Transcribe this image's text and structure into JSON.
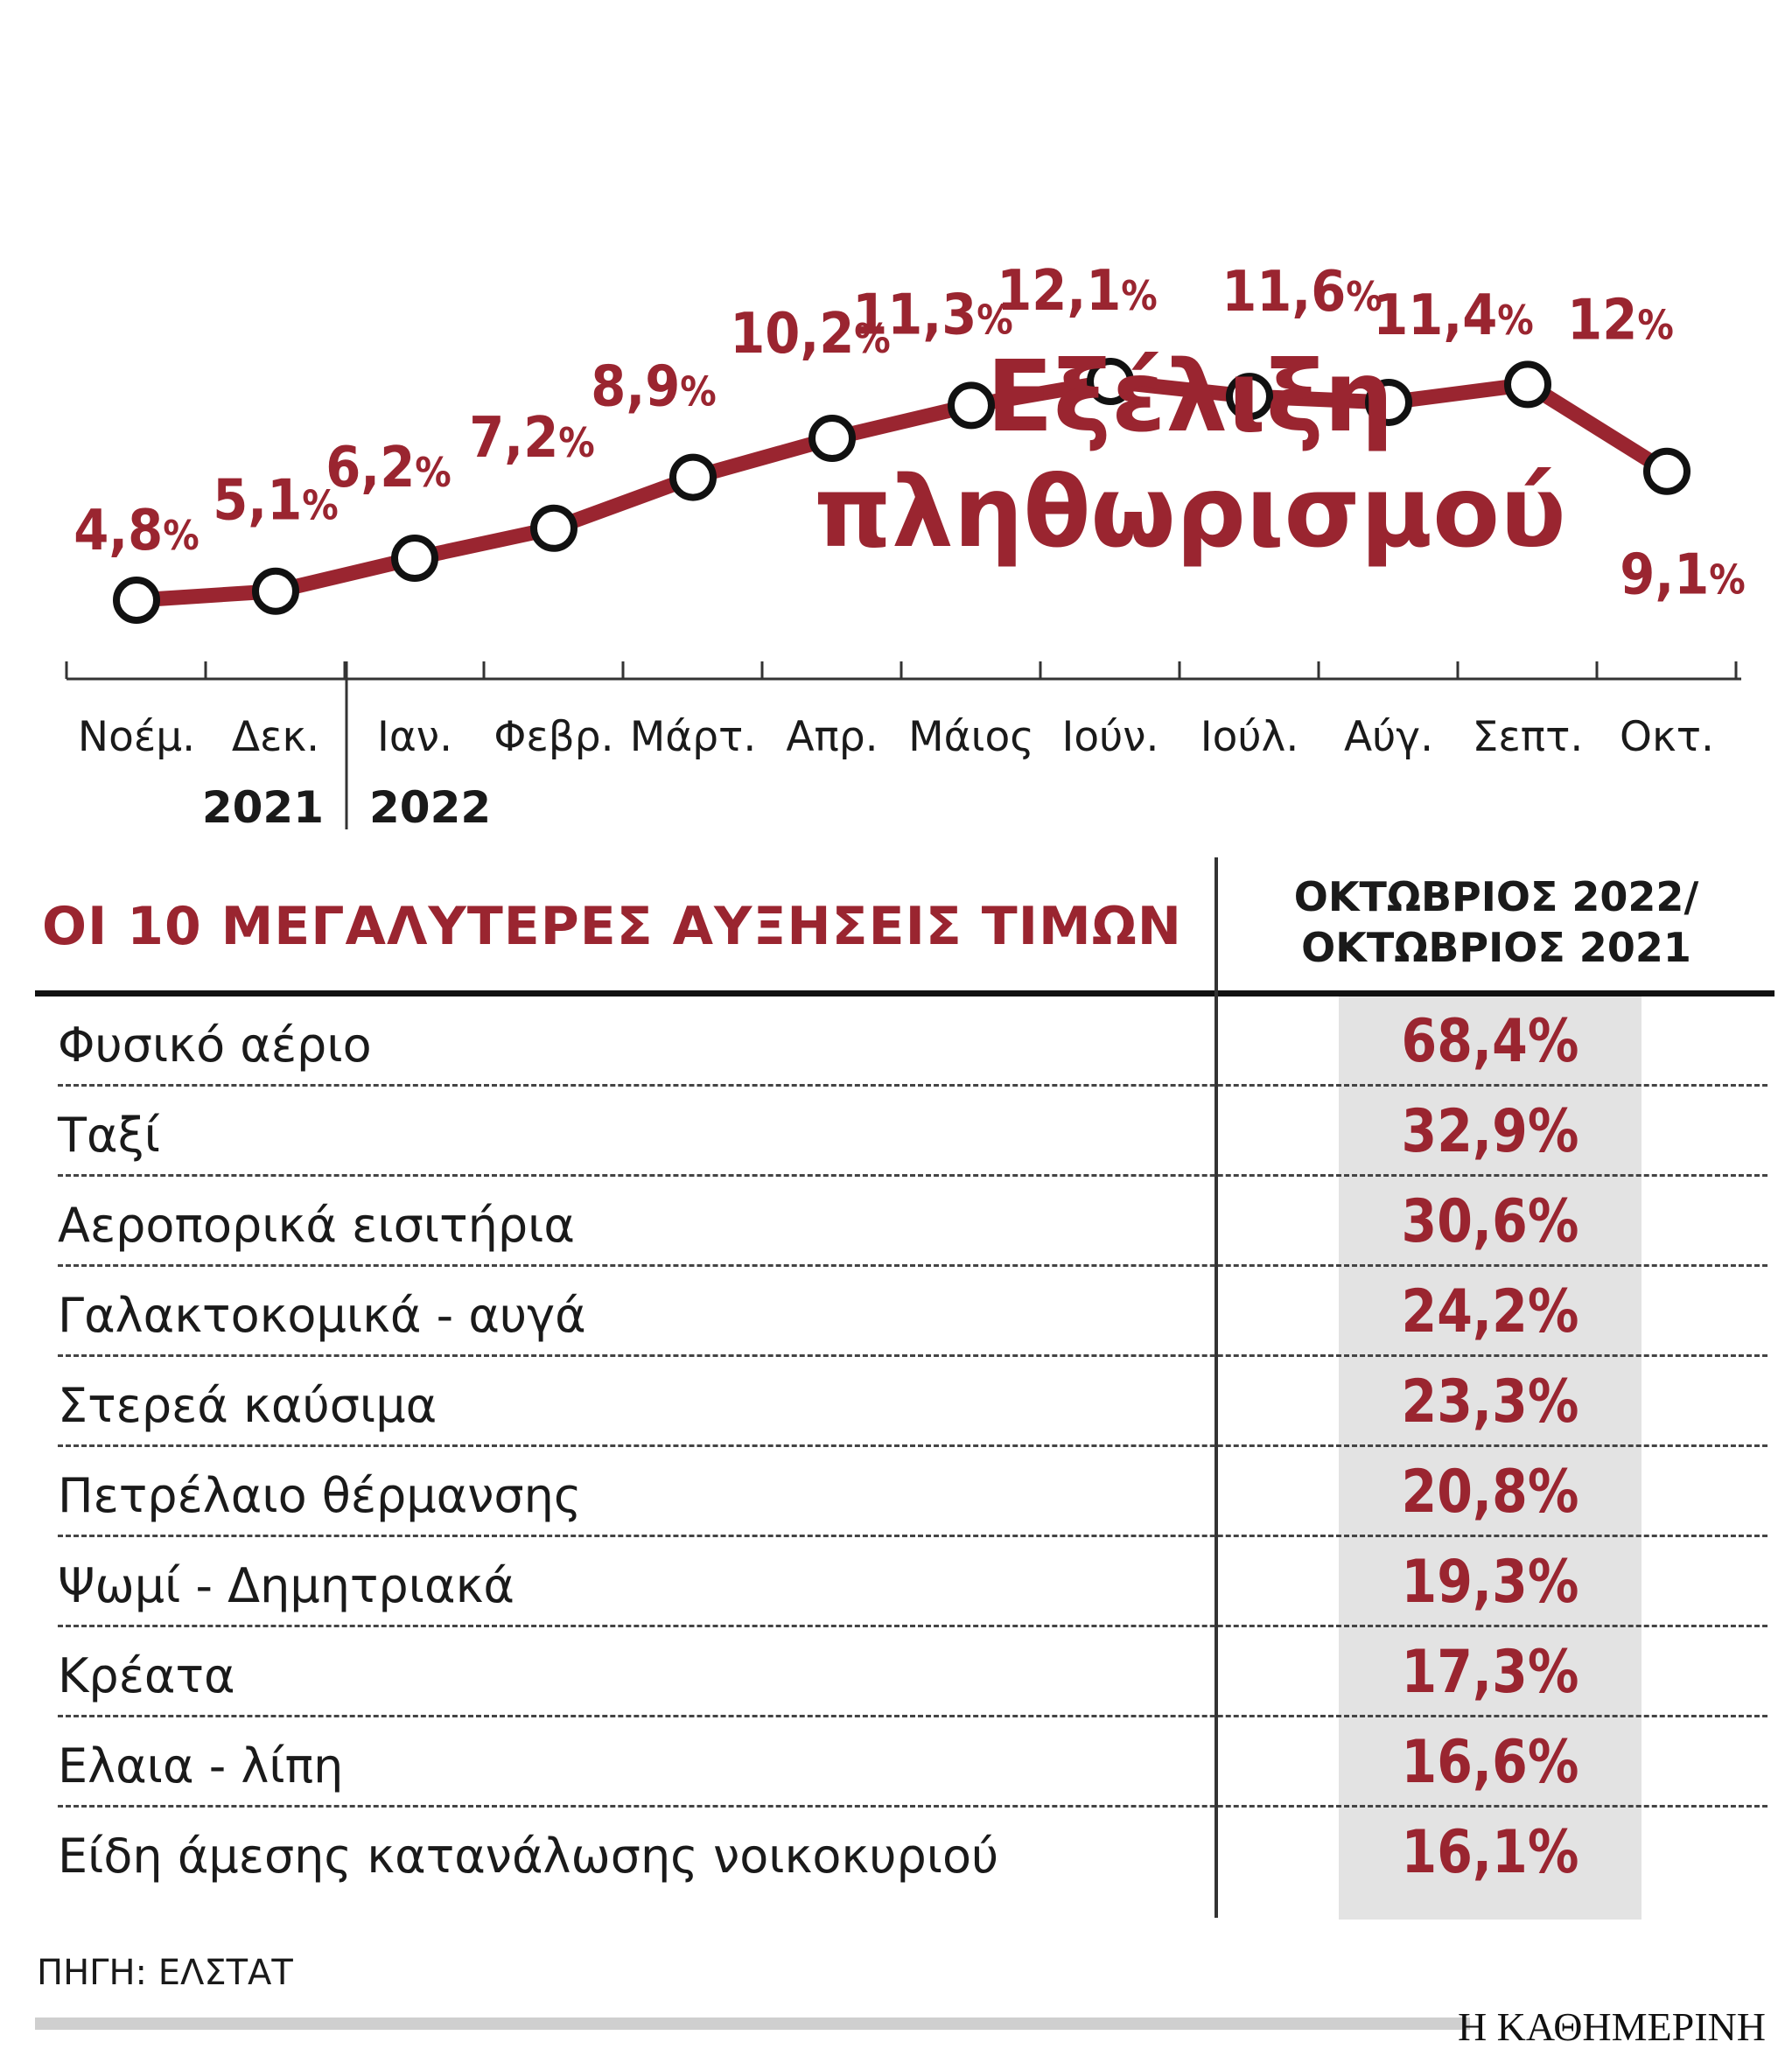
{
  "chart_data": {
    "type": "line",
    "title_lines": [
      "Εξέλιξη",
      "πληθωρισμού"
    ],
    "categories": [
      "Νοέμ.",
      "Δεκ.",
      "Ιαν.",
      "Φεβρ.",
      "Μάρτ.",
      "Απρ.",
      "Μάιος",
      "Ιούν.",
      "Ιούλ.",
      "Αύγ.",
      "Σεπτ.",
      "Οκτ."
    ],
    "year_labels": [
      "2021",
      "2022"
    ],
    "values": [
      4.8,
      5.1,
      6.2,
      7.2,
      8.9,
      10.2,
      11.3,
      12.1,
      11.6,
      11.4,
      12,
      9.1
    ],
    "value_labels": [
      "4,8%",
      "5,1%",
      "6,2%",
      "7,2%",
      "8,9%",
      "10,2%",
      "11,3%",
      "12,1%",
      "11,6%",
      "11,4%",
      "12%",
      "9,1%"
    ],
    "line_color": "#9a2530",
    "grid": false
  },
  "table": {
    "title": "ΟΙ 10 ΜΕΓΑΛΥΤΕΡΕΣ ΑΥΞΗΣΕΙΣ ΤΙΜΩΝ",
    "column_header": [
      "ΟΚΤΩΒΡΙΟΣ 2022/",
      "ΟΚΤΩΒΡΙΟΣ 2021"
    ],
    "rows": [
      {
        "name": "Φυσικό αέριο",
        "value": "68,4%"
      },
      {
        "name": "Ταξί",
        "value": "32,9%"
      },
      {
        "name": "Αεροπορικά εισιτήρια",
        "value": "30,6%"
      },
      {
        "name": "Γαλακτοκομικά - αυγά",
        "value": "24,2%"
      },
      {
        "name": "Στερεά καύσιμα",
        "value": "23,3%"
      },
      {
        "name": "Πετρέλαιο θέρμανσης",
        "value": "20,8%"
      },
      {
        "name": "Ψωμί - Δημητριακά",
        "value": "19,3%"
      },
      {
        "name": "Κρέατα",
        "value": "17,3%"
      },
      {
        "name": "Ελαια - λίπη",
        "value": "16,6%"
      },
      {
        "name": "Είδη άμεσης κατανάλωσης νοικοκυριού",
        "value": "16,1%"
      }
    ]
  },
  "footer": {
    "source": "ΠΗΓΗ: ΕΛΣΤΑΤ",
    "brand": "Η ΚΑΘΗΜΕΡΙΝΗ"
  },
  "colors": {
    "accent": "#9a2530",
    "shade": "#e3e3e3"
  }
}
